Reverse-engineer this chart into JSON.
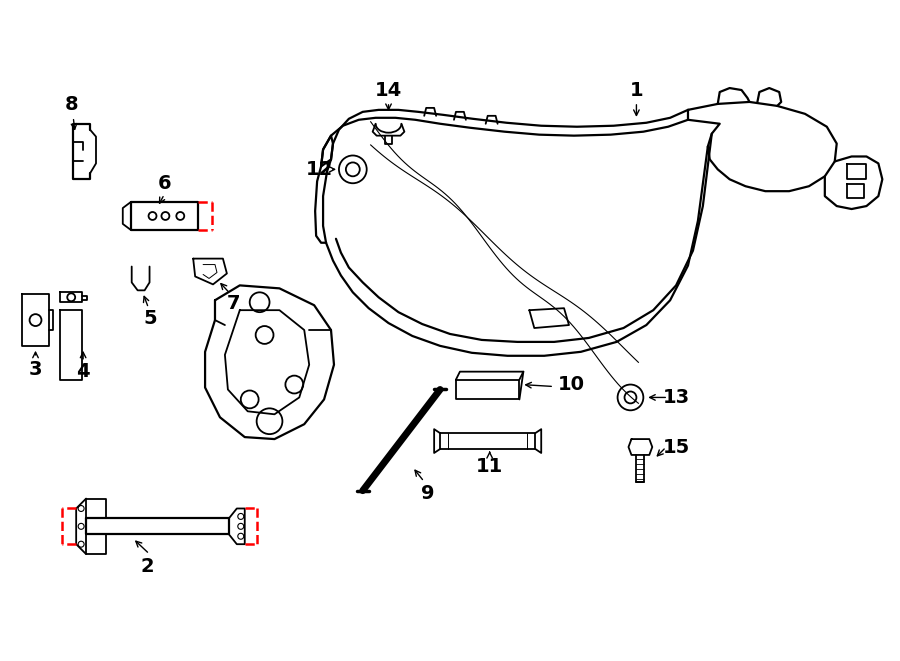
{
  "background_color": "#ffffff",
  "line_color": "#000000",
  "red_dash_color": "#ff0000",
  "figsize": [
    9.0,
    6.61
  ],
  "dpi": 100
}
